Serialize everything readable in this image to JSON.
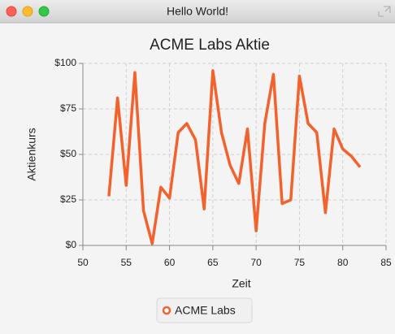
{
  "window": {
    "title": "Hello World!"
  },
  "chart_data": {
    "type": "line",
    "title": "ACME Labs Aktie",
    "x_label": "Zeit",
    "y_label": "Aktienkurs",
    "x": [
      53,
      54,
      55,
      56,
      57,
      58,
      59,
      60,
      61,
      62,
      63,
      64,
      65,
      66,
      67,
      68,
      69,
      70,
      71,
      72,
      73,
      74,
      75,
      76,
      77,
      78,
      79,
      80,
      81,
      82
    ],
    "series": [
      {
        "name": "ACME Labs",
        "color": "#f3622d",
        "values": [
          27,
          81,
          33,
          95,
          19,
          1,
          32,
          26,
          62,
          67,
          58,
          20,
          96,
          62,
          44,
          34,
          64,
          8,
          67,
          94,
          23,
          25,
          93,
          67,
          62,
          18,
          64,
          53,
          49,
          43
        ]
      }
    ],
    "xlim": [
      50,
      85
    ],
    "xticks": [
      50,
      55,
      60,
      65,
      70,
      75,
      80,
      85
    ],
    "ylim": [
      0,
      100
    ],
    "yticks": [
      {
        "value": 0,
        "label": "$0"
      },
      {
        "value": 25,
        "label": "$25"
      },
      {
        "value": 50,
        "label": "$50"
      },
      {
        "value": 75,
        "label": "$75"
      },
      {
        "value": 100,
        "label": "$100"
      }
    ],
    "grid": true,
    "legend": "bottom"
  }
}
